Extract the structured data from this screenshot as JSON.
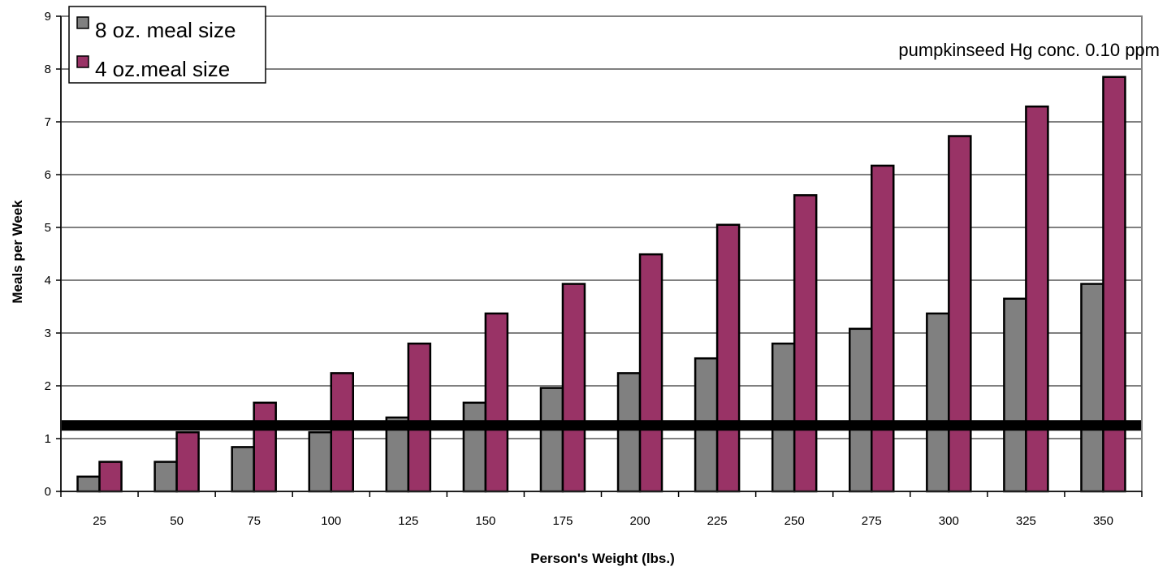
{
  "chart_data": {
    "type": "bar",
    "title": "",
    "xlabel": "Person's Weight (lbs.)",
    "ylabel": "Meals per Week",
    "ylim": [
      0,
      9
    ],
    "yticks": [
      0,
      1,
      2,
      3,
      4,
      5,
      6,
      7,
      8,
      9
    ],
    "grid": true,
    "categories": [
      "25",
      "50",
      "75",
      "100",
      "125",
      "150",
      "175",
      "200",
      "225",
      "250",
      "275",
      "300",
      "325",
      "350"
    ],
    "series": [
      {
        "name": "8 oz. meal size",
        "color": "#808080",
        "values": [
          0.28,
          0.56,
          0.84,
          1.12,
          1.4,
          1.68,
          1.96,
          2.24,
          2.52,
          2.8,
          3.08,
          3.37,
          3.65,
          3.93
        ]
      },
      {
        "name": "4 oz.meal size",
        "color": "#993366",
        "values": [
          0.56,
          1.12,
          1.68,
          2.24,
          2.8,
          3.37,
          3.93,
          4.49,
          5.05,
          5.61,
          6.17,
          6.73,
          7.29,
          7.85
        ]
      }
    ],
    "reference_line": {
      "value": 1.25,
      "color": "#000000"
    },
    "annotation": "pumpkinseed Hg conc. 0.10 ppm",
    "legend_position": "top-left"
  }
}
